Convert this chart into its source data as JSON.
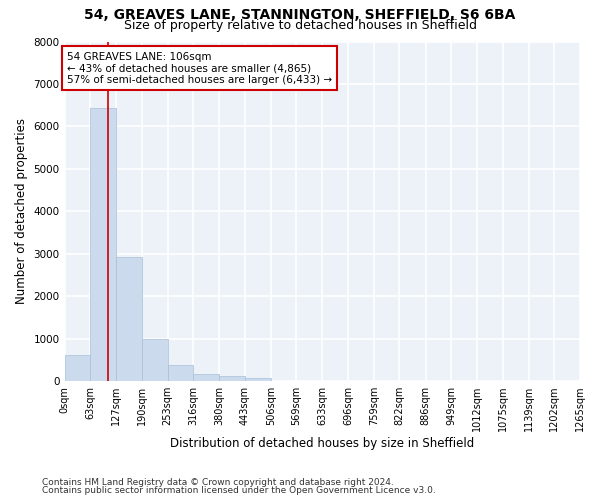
{
  "title_line1": "54, GREAVES LANE, STANNINGTON, SHEFFIELD, S6 6BA",
  "title_line2": "Size of property relative to detached houses in Sheffield",
  "xlabel": "Distribution of detached houses by size in Sheffield",
  "ylabel": "Number of detached properties",
  "bar_color": "#ccdaed",
  "bar_edgecolor": "#a8bfd8",
  "background_color": "#edf2f9",
  "grid_color": "#ffffff",
  "vline_value": 106,
  "vline_color": "#cc0000",
  "annotation_title": "54 GREAVES LANE: 106sqm",
  "annotation_line2": "← 43% of detached houses are smaller (4,865)",
  "annotation_line3": "57% of semi-detached houses are larger (6,433) →",
  "annotation_box_edgecolor": "#cc0000",
  "bin_edges": [
    0,
    63,
    127,
    190,
    253,
    316,
    380,
    443,
    506,
    569,
    633,
    696,
    759,
    822,
    886,
    949,
    1012,
    1075,
    1139,
    1202,
    1265
  ],
  "bar_heights": [
    610,
    6430,
    2920,
    1000,
    380,
    160,
    120,
    80,
    0,
    0,
    0,
    0,
    0,
    0,
    0,
    0,
    0,
    0,
    0,
    0
  ],
  "tick_labels": [
    "0sqm",
    "63sqm",
    "127sqm",
    "190sqm",
    "253sqm",
    "316sqm",
    "380sqm",
    "443sqm",
    "506sqm",
    "569sqm",
    "633sqm",
    "696sqm",
    "759sqm",
    "822sqm",
    "886sqm",
    "949sqm",
    "1012sqm",
    "1075sqm",
    "1139sqm",
    "1202sqm",
    "1265sqm"
  ],
  "ylim": [
    0,
    8000
  ],
  "yticks": [
    0,
    1000,
    2000,
    3000,
    4000,
    5000,
    6000,
    7000,
    8000
  ],
  "footer_line1": "Contains HM Land Registry data © Crown copyright and database right 2024.",
  "footer_line2": "Contains public sector information licensed under the Open Government Licence v3.0.",
  "title_fontsize": 10,
  "subtitle_fontsize": 9,
  "axis_label_fontsize": 8.5,
  "tick_fontsize": 7,
  "annotation_fontsize": 7.5,
  "footer_fontsize": 6.5
}
